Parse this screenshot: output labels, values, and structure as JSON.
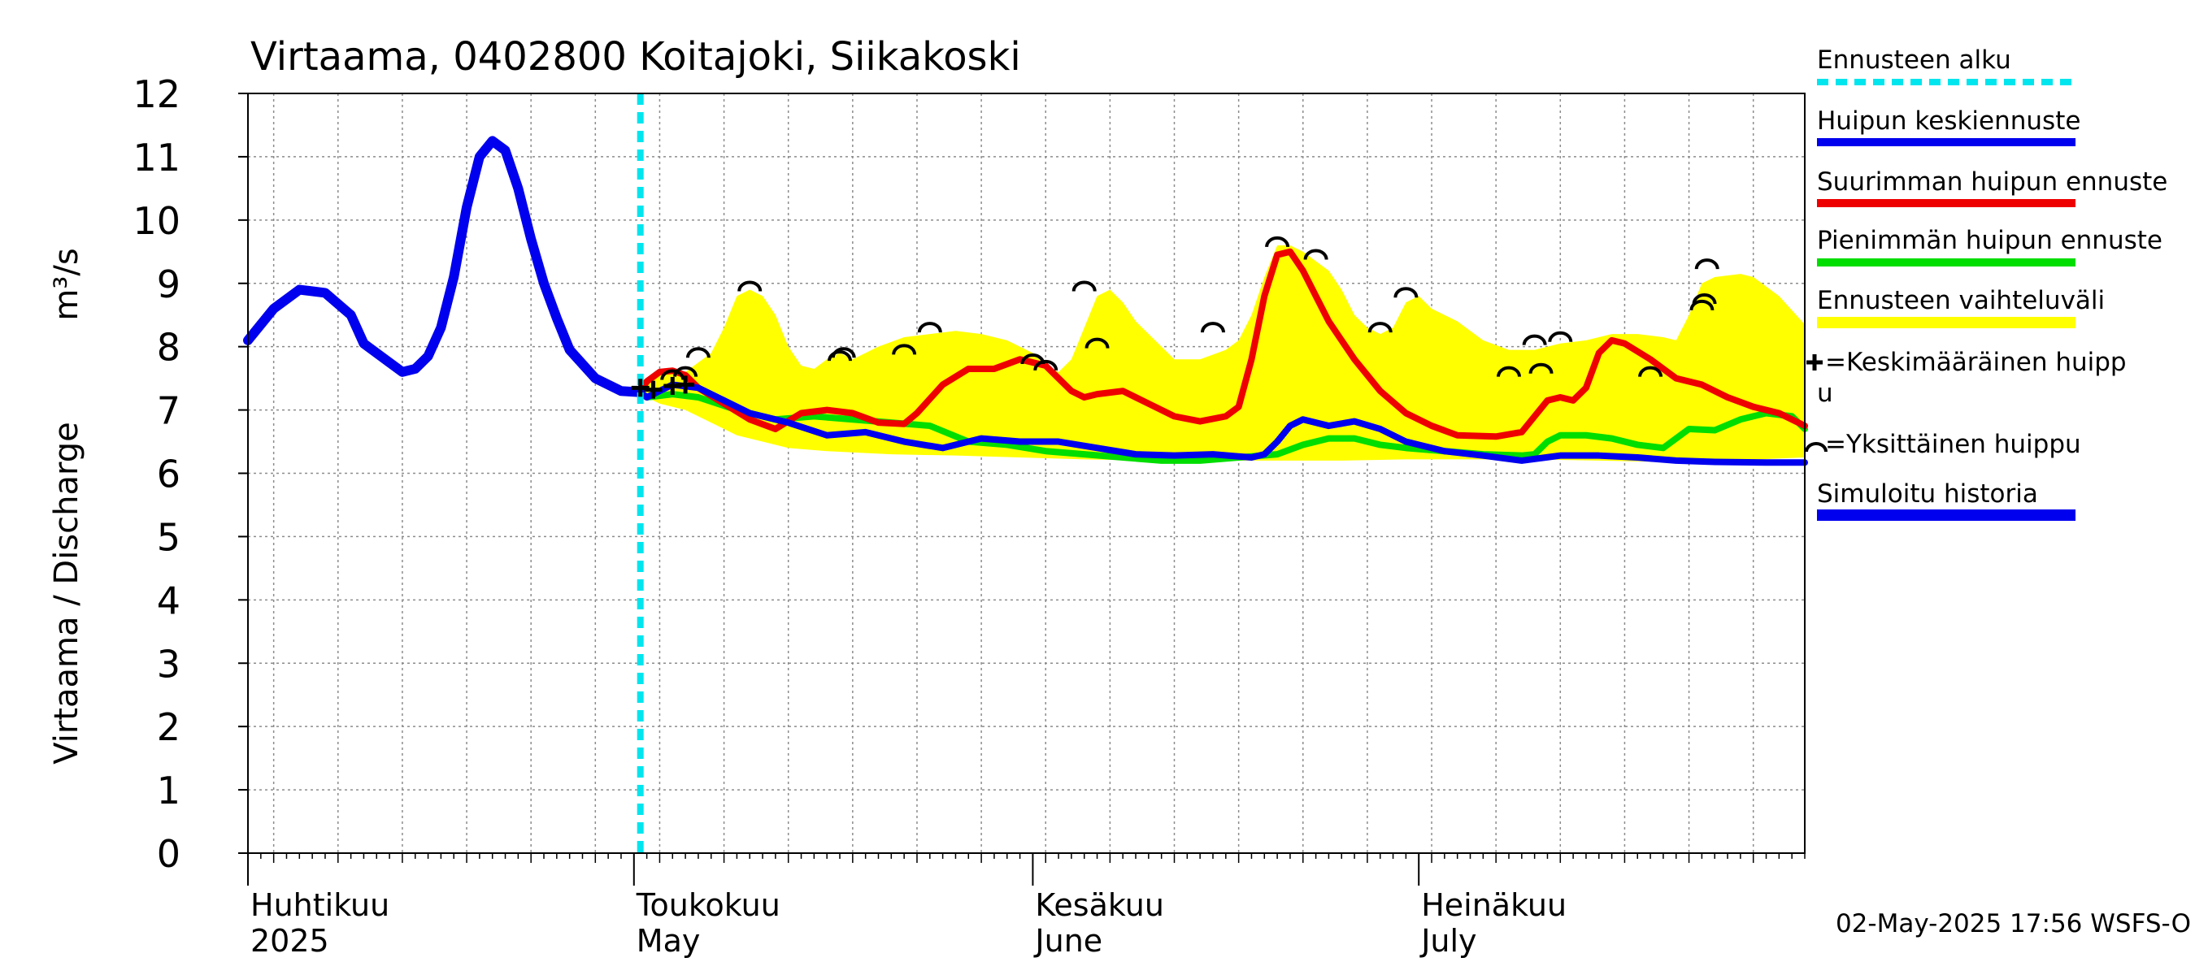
{
  "chart_data": {
    "type": "line",
    "title": "Virtaama, 0402800 Koitajoki, Siikakoski",
    "ylabel_fi": "Virtaama / Discharge",
    "ylabel_unit": "m³/s",
    "ylim": [
      0,
      12
    ],
    "yticks": [
      "0",
      "1",
      "2",
      "3",
      "4",
      "5",
      "6",
      "7",
      "8",
      "9",
      "10",
      "11",
      "12"
    ],
    "xlim": [
      0,
      121
    ],
    "month_labels": [
      {
        "x": 0,
        "fi": "Huhtikuu",
        "en": "2025"
      },
      {
        "x": 30,
        "fi": "Toukokuu",
        "en": "May"
      },
      {
        "x": 61,
        "fi": "Kesäkuu",
        "en": "June"
      },
      {
        "x": 91,
        "fi": "Heinäkuu",
        "en": "July"
      }
    ],
    "forecast_start": 30.5,
    "grid": true,
    "legend_position": "right",
    "legend": {
      "forecast_start": "Ennusteen alku",
      "mean_peak": "Huipun keskiennuste",
      "max_peak": "Suurimman huipun ennuste",
      "min_peak": "Pienimmän huipun ennuste",
      "range": "Ennusteen vaihteluväli",
      "avg_peak_line1": "=Keskimääräinen huipp",
      "avg_peak_line2": "u",
      "single_peak": "=Yksittäinen huippu",
      "history": "Simuloitu historia"
    },
    "colors": {
      "forecast_start": "#00e5ee",
      "mean": "#0000ee",
      "max": "#ee0000",
      "min": "#00dd00",
      "range": "#ffff00",
      "history": "#0000ee"
    },
    "history": {
      "name": "Simuloitu historia",
      "points": [
        [
          0,
          8.1
        ],
        [
          2,
          8.6
        ],
        [
          4,
          8.9
        ],
        [
          6,
          8.85
        ],
        [
          8,
          8.5
        ],
        [
          9,
          8.05
        ],
        [
          11,
          7.75
        ],
        [
          12,
          7.6
        ],
        [
          13,
          7.65
        ],
        [
          14,
          7.85
        ],
        [
          15,
          8.3
        ],
        [
          16,
          9.1
        ],
        [
          17,
          10.2
        ],
        [
          18,
          11.0
        ],
        [
          19,
          11.25
        ],
        [
          20,
          11.1
        ],
        [
          21,
          10.5
        ],
        [
          22,
          9.7
        ],
        [
          23,
          9.0
        ],
        [
          24,
          8.45
        ],
        [
          25,
          7.95
        ],
        [
          27,
          7.5
        ],
        [
          29,
          7.3
        ],
        [
          30.5,
          7.28
        ]
      ]
    },
    "mean_forecast": {
      "name": "Huipun keskiennuste",
      "points": [
        [
          30.5,
          7.28
        ],
        [
          31,
          7.2
        ],
        [
          32,
          7.3
        ],
        [
          33,
          7.4
        ],
        [
          35,
          7.35
        ],
        [
          37,
          7.15
        ],
        [
          39,
          6.95
        ],
        [
          42,
          6.8
        ],
        [
          45,
          6.6
        ],
        [
          48,
          6.65
        ],
        [
          51,
          6.5
        ],
        [
          54,
          6.4
        ],
        [
          57,
          6.55
        ],
        [
          60,
          6.5
        ],
        [
          63,
          6.5
        ],
        [
          66,
          6.4
        ],
        [
          69,
          6.3
        ],
        [
          72,
          6.28
        ],
        [
          75,
          6.3
        ],
        [
          78,
          6.25
        ],
        [
          79,
          6.3
        ],
        [
          80,
          6.5
        ],
        [
          81,
          6.75
        ],
        [
          82,
          6.85
        ],
        [
          84,
          6.75
        ],
        [
          86,
          6.82
        ],
        [
          88,
          6.7
        ],
        [
          90,
          6.5
        ],
        [
          93,
          6.35
        ],
        [
          96,
          6.28
        ],
        [
          99,
          6.2
        ],
        [
          102,
          6.28
        ],
        [
          105,
          6.28
        ],
        [
          108,
          6.25
        ],
        [
          111,
          6.2
        ],
        [
          114,
          6.18
        ],
        [
          118,
          6.17
        ],
        [
          121,
          6.17
        ]
      ]
    },
    "max_forecast": {
      "name": "Suurimman huipun ennuste",
      "points": [
        [
          30.5,
          7.3
        ],
        [
          31,
          7.45
        ],
        [
          32,
          7.6
        ],
        [
          33,
          7.62
        ],
        [
          34,
          7.55
        ],
        [
          35,
          7.35
        ],
        [
          37,
          7.1
        ],
        [
          39,
          6.85
        ],
        [
          41,
          6.7
        ],
        [
          43,
          6.95
        ],
        [
          45,
          7.0
        ],
        [
          47,
          6.95
        ],
        [
          49,
          6.8
        ],
        [
          51,
          6.78
        ],
        [
          52,
          6.95
        ],
        [
          54,
          7.4
        ],
        [
          56,
          7.65
        ],
        [
          58,
          7.65
        ],
        [
          60,
          7.8
        ],
        [
          62,
          7.7
        ],
        [
          63,
          7.5
        ],
        [
          64,
          7.3
        ],
        [
          65,
          7.2
        ],
        [
          66,
          7.25
        ],
        [
          68,
          7.3
        ],
        [
          70,
          7.1
        ],
        [
          72,
          6.9
        ],
        [
          74,
          6.82
        ],
        [
          76,
          6.9
        ],
        [
          77,
          7.05
        ],
        [
          78,
          7.8
        ],
        [
          79,
          8.8
        ],
        [
          80,
          9.45
        ],
        [
          81,
          9.5
        ],
        [
          82,
          9.2
        ],
        [
          84,
          8.4
        ],
        [
          86,
          7.8
        ],
        [
          88,
          7.3
        ],
        [
          90,
          6.95
        ],
        [
          92,
          6.75
        ],
        [
          94,
          6.6
        ],
        [
          97,
          6.58
        ],
        [
          99,
          6.65
        ],
        [
          100,
          6.9
        ],
        [
          101,
          7.15
        ],
        [
          102,
          7.2
        ],
        [
          103,
          7.15
        ],
        [
          104,
          7.35
        ],
        [
          105,
          7.9
        ],
        [
          106,
          8.1
        ],
        [
          107,
          8.05
        ],
        [
          109,
          7.8
        ],
        [
          111,
          7.5
        ],
        [
          113,
          7.4
        ],
        [
          115,
          7.2
        ],
        [
          117,
          7.05
        ],
        [
          119,
          6.95
        ],
        [
          121,
          6.75
        ]
      ]
    },
    "min_forecast": {
      "name": "Pienimmän huipun ennuste",
      "points": [
        [
          30.5,
          7.28
        ],
        [
          31,
          7.2
        ],
        [
          33,
          7.25
        ],
        [
          35,
          7.2
        ],
        [
          38,
          7.0
        ],
        [
          41,
          6.85
        ],
        [
          44,
          6.9
        ],
        [
          47,
          6.85
        ],
        [
          50,
          6.8
        ],
        [
          53,
          6.75
        ],
        [
          56,
          6.5
        ],
        [
          59,
          6.45
        ],
        [
          62,
          6.35
        ],
        [
          65,
          6.3
        ],
        [
          68,
          6.25
        ],
        [
          71,
          6.2
        ],
        [
          74,
          6.2
        ],
        [
          77,
          6.25
        ],
        [
          80,
          6.3
        ],
        [
          82,
          6.45
        ],
        [
          84,
          6.55
        ],
        [
          86,
          6.55
        ],
        [
          88,
          6.45
        ],
        [
          90,
          6.4
        ],
        [
          93,
          6.35
        ],
        [
          96,
          6.3
        ],
        [
          99,
          6.28
        ],
        [
          100,
          6.3
        ],
        [
          101,
          6.5
        ],
        [
          102,
          6.6
        ],
        [
          104,
          6.6
        ],
        [
          106,
          6.55
        ],
        [
          108,
          6.45
        ],
        [
          110,
          6.4
        ],
        [
          111,
          6.55
        ],
        [
          112,
          6.7
        ],
        [
          114,
          6.68
        ],
        [
          116,
          6.85
        ],
        [
          118,
          6.95
        ],
        [
          120,
          6.9
        ],
        [
          121,
          6.7
        ]
      ]
    },
    "range_upper": [
      [
        30.5,
        7.3
      ],
      [
        31,
        7.5
      ],
      [
        32,
        7.65
      ],
      [
        34,
        7.6
      ],
      [
        36,
        7.9
      ],
      [
        37,
        8.3
      ],
      [
        38,
        8.8
      ],
      [
        39,
        8.9
      ],
      [
        40,
        8.8
      ],
      [
        41,
        8.5
      ],
      [
        42,
        8.0
      ],
      [
        43,
        7.7
      ],
      [
        44,
        7.65
      ],
      [
        45,
        7.8
      ],
      [
        46,
        7.9
      ],
      [
        47,
        7.8
      ],
      [
        49,
        8.0
      ],
      [
        51,
        8.15
      ],
      [
        53,
        8.2
      ],
      [
        55,
        8.25
      ],
      [
        57,
        8.2
      ],
      [
        59,
        8.1
      ],
      [
        61,
        7.9
      ],
      [
        62,
        7.7
      ],
      [
        63,
        7.6
      ],
      [
        64,
        7.8
      ],
      [
        65,
        8.3
      ],
      [
        66,
        8.8
      ],
      [
        67,
        8.9
      ],
      [
        68,
        8.7
      ],
      [
        69,
        8.4
      ],
      [
        71,
        8.0
      ],
      [
        72,
        7.8
      ],
      [
        74,
        7.8
      ],
      [
        76,
        7.95
      ],
      [
        77,
        8.1
      ],
      [
        78,
        8.5
      ],
      [
        79,
        9.1
      ],
      [
        80,
        9.6
      ],
      [
        81,
        9.6
      ],
      [
        82,
        9.5
      ],
      [
        83,
        9.35
      ],
      [
        84,
        9.2
      ],
      [
        85,
        8.9
      ],
      [
        86,
        8.5
      ],
      [
        87,
        8.3
      ],
      [
        88,
        8.2
      ],
      [
        89,
        8.3
      ],
      [
        90,
        8.7
      ],
      [
        91,
        8.8
      ],
      [
        92,
        8.6
      ],
      [
        94,
        8.4
      ],
      [
        96,
        8.1
      ],
      [
        98,
        7.95
      ],
      [
        100,
        7.95
      ],
      [
        102,
        8.05
      ],
      [
        104,
        8.1
      ],
      [
        106,
        8.2
      ],
      [
        108,
        8.2
      ],
      [
        110,
        8.15
      ],
      [
        111,
        8.1
      ],
      [
        112,
        8.5
      ],
      [
        113,
        9.0
      ],
      [
        114,
        9.1
      ],
      [
        116,
        9.15
      ],
      [
        117,
        9.1
      ],
      [
        119,
        8.8
      ],
      [
        121,
        8.35
      ]
    ],
    "range_lower": [
      [
        30.5,
        7.25
      ],
      [
        32,
        7.1
      ],
      [
        34,
        7.0
      ],
      [
        36,
        6.8
      ],
      [
        38,
        6.6
      ],
      [
        40,
        6.5
      ],
      [
        42,
        6.4
      ],
      [
        45,
        6.35
      ],
      [
        50,
        6.3
      ],
      [
        55,
        6.28
      ],
      [
        60,
        6.25
      ],
      [
        65,
        6.22
      ],
      [
        70,
        6.2
      ],
      [
        75,
        6.2
      ],
      [
        80,
        6.2
      ],
      [
        85,
        6.2
      ],
      [
        90,
        6.22
      ],
      [
        95,
        6.22
      ],
      [
        100,
        6.22
      ],
      [
        105,
        6.2
      ],
      [
        110,
        6.18
      ],
      [
        115,
        6.2
      ],
      [
        121,
        6.25
      ]
    ],
    "avg_peaks": [
      [
        30.5,
        7.35
      ],
      [
        31.5,
        7.32
      ],
      [
        33,
        7.38
      ],
      [
        34,
        7.4
      ]
    ],
    "single_peaks": [
      [
        33,
        7.45
      ],
      [
        34,
        7.5
      ],
      [
        35,
        7.8
      ],
      [
        39,
        8.85
      ],
      [
        46,
        7.75
      ],
      [
        46.3,
        7.8
      ],
      [
        51,
        7.85
      ],
      [
        53,
        8.2
      ],
      [
        61,
        7.7
      ],
      [
        62,
        7.6
      ],
      [
        65,
        8.85
      ],
      [
        66,
        7.95
      ],
      [
        75,
        8.2
      ],
      [
        80,
        9.55
      ],
      [
        83,
        9.35
      ],
      [
        88,
        8.2
      ],
      [
        90,
        8.75
      ],
      [
        98,
        7.5
      ],
      [
        100,
        8.0
      ],
      [
        100.5,
        7.55
      ],
      [
        102,
        8.05
      ],
      [
        109,
        7.5
      ],
      [
        113,
        8.55
      ],
      [
        113.2,
        8.65
      ],
      [
        113.4,
        9.2
      ]
    ],
    "timestamp": "02-May-2025 17:56 WSFS-O"
  }
}
